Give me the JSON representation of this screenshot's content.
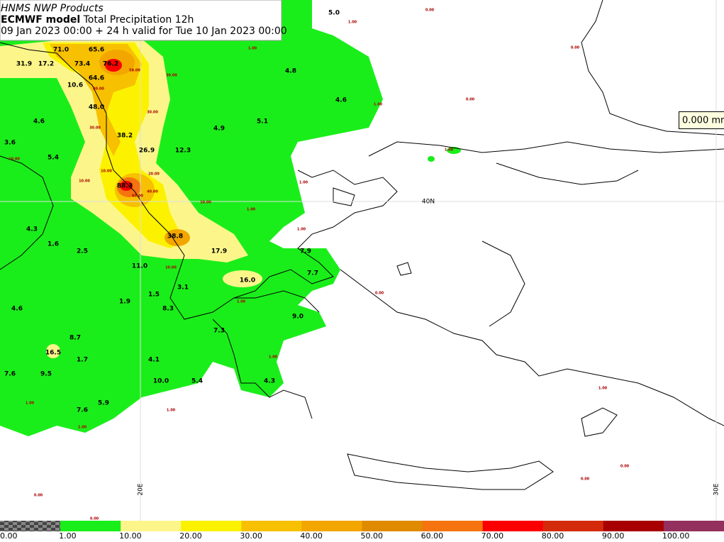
{
  "header": {
    "agency": "HNMS NWP Products",
    "model": "ECMWF model",
    "product": "Total Precipitation 12h",
    "validity": "09 Jan 2023 00:00 + 24 h valid for Tue 10 Jan 2023 00:00"
  },
  "tooltip": "0.000 mm",
  "graticule": [
    "40N",
    "20E",
    "30E"
  ],
  "precip_labels": [
    "5.0",
    "71.0",
    "65.6",
    "31.9",
    "17.2",
    "73.4",
    "76.2",
    "4.8",
    "64.6",
    "10.6",
    "4.6",
    "48.0",
    "4.6",
    "5.1",
    "4.9",
    "38.2",
    "3.6",
    "26.9",
    "12.3",
    "5.4",
    "88.3",
    "4.3",
    "38.8",
    "1.6",
    "2.5",
    "7.9",
    "17.9",
    "11.0",
    "7.7",
    "16.0",
    "3.1",
    "1.5",
    "1.9",
    "8.3",
    "4.6",
    "9.0",
    "7.3",
    "8.7",
    "16.5",
    "1.7",
    "4.1",
    "7.6",
    "9.5",
    "10.0",
    "5.4",
    "4.3",
    "5.9",
    "7.6"
  ],
  "contour_labels": [
    "0.00",
    "1.00",
    "1.00",
    "0.00",
    "58.00",
    "30.00",
    "80.00",
    "0.00",
    "1.00",
    "30.00",
    "30.00",
    "1.00",
    "10.00",
    "10.00",
    "20.00",
    "10.00",
    "1.00",
    "40.00",
    "60.00",
    "10.00",
    "1.00",
    "1.00",
    "10.00",
    "0.00",
    "1.00",
    "1.00",
    "1.00",
    "1.00",
    "1.00",
    "0.00",
    "0.00",
    "0.00",
    "0.00",
    "1.00"
  ],
  "legend": [
    {
      "label": "0.00",
      "color": "checker"
    },
    {
      "label": "1.00",
      "color": "#1aee1a"
    },
    {
      "label": "10.00",
      "color": "#fcf68a"
    },
    {
      "label": "20.00",
      "color": "#fcf200"
    },
    {
      "label": "30.00",
      "color": "#f7c000"
    },
    {
      "label": "40.00",
      "color": "#f3a600"
    },
    {
      "label": "50.00",
      "color": "#e08a00"
    },
    {
      "label": "60.00",
      "color": "#f57410"
    },
    {
      "label": "70.00",
      "color": "#fb0000"
    },
    {
      "label": "80.00",
      "color": "#d42a0c"
    },
    {
      "label": "90.00",
      "color": "#a80000"
    },
    {
      "label": "100.00",
      "color": "#93305e"
    }
  ]
}
